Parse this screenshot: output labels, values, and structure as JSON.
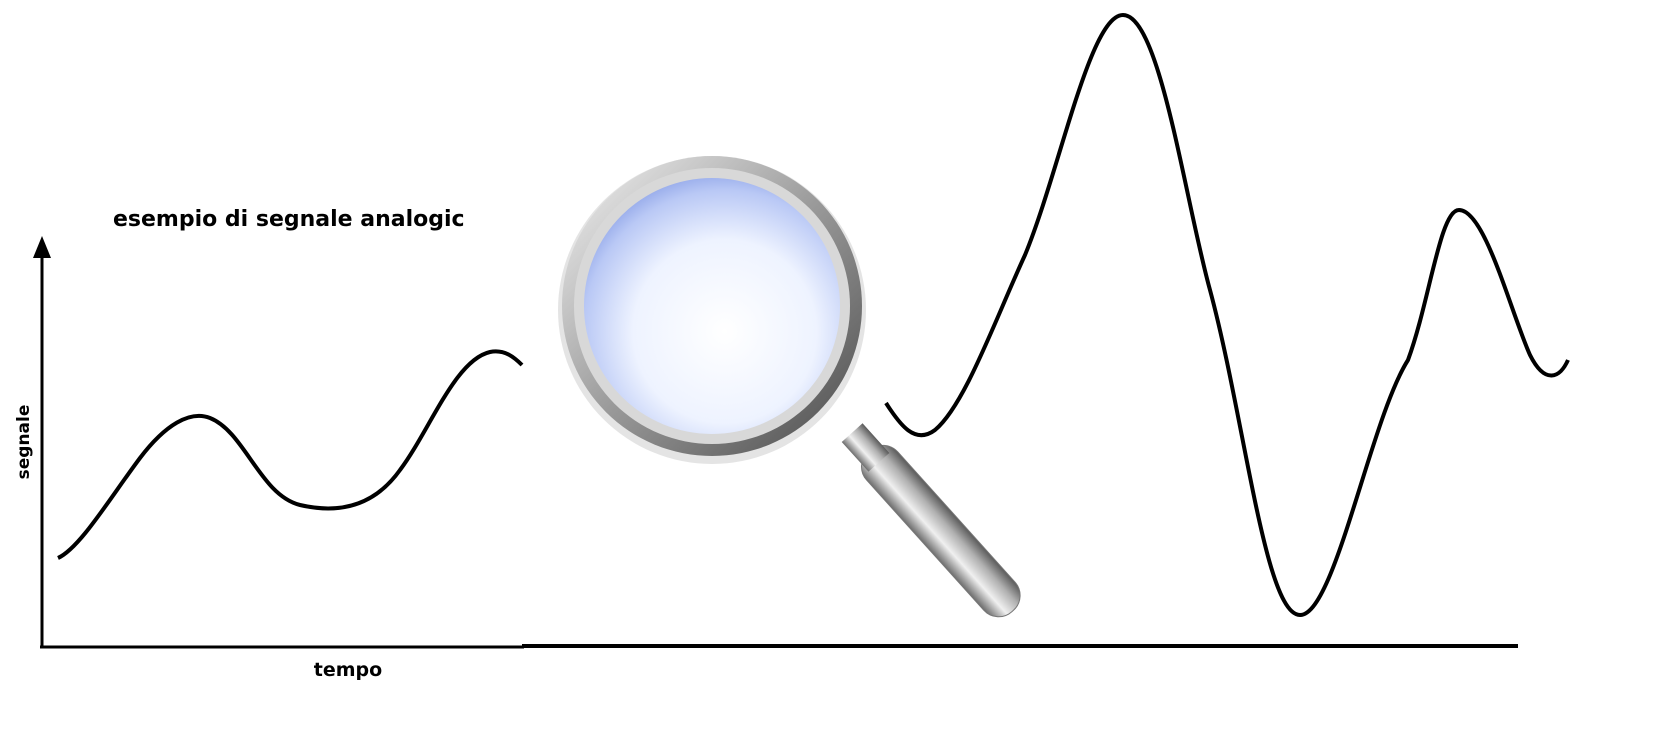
{
  "title": "esempio di segnale analogic",
  "y_axis_label": "segnale",
  "x_axis_label": "tempo"
}
